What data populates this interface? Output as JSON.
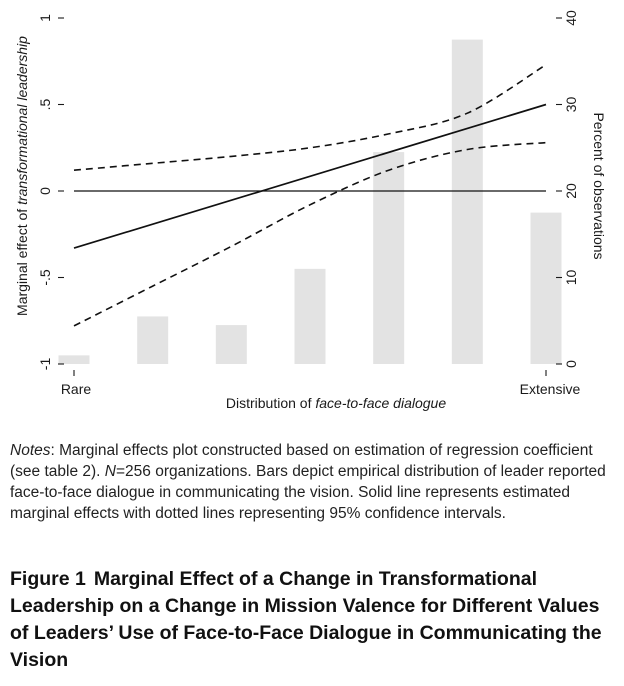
{
  "chart_data": {
    "type": "line",
    "xlabel_prefix": "Distribution of ",
    "xlabel_italic": "face-to-face dialogue",
    "ylabel_prefix": "Marginal effect of ",
    "ylabel_italic": "transformational leadership",
    "y2label": "Percent of observations",
    "x_tick_labels": [
      "Rare",
      "Extensive"
    ],
    "x_range": [
      1,
      7
    ],
    "ylim": [
      -1,
      1
    ],
    "y_ticks": [
      "-1",
      "-.5",
      "0",
      ".5",
      "1"
    ],
    "y2lim": [
      0,
      40
    ],
    "y2_ticks": [
      "0",
      "10",
      "20",
      "30",
      "40"
    ],
    "bars": {
      "x": [
        1,
        2,
        3,
        4,
        5,
        6,
        7
      ],
      "values": [
        1,
        5.5,
        4.5,
        11,
        24.5,
        37.5,
        17.5
      ]
    },
    "marginal_effect": {
      "x": [
        1,
        7
      ],
      "y": [
        -0.33,
        0.5
      ]
    },
    "ci_upper": {
      "x": [
        1,
        2,
        3,
        4,
        5,
        6,
        7
      ],
      "y": [
        0.12,
        0.16,
        0.2,
        0.25,
        0.33,
        0.45,
        0.73
      ]
    },
    "ci_lower": {
      "x": [
        1,
        2,
        3,
        4,
        5,
        6,
        7
      ],
      "y": [
        -0.78,
        -0.55,
        -0.32,
        -0.08,
        0.12,
        0.24,
        0.28
      ]
    },
    "reference_line_y": 0,
    "grid": false
  },
  "notes": {
    "label": "Notes",
    "part1": ": Marginal effects plot constructed based on estimation of regression coefficient (see table 2). ",
    "n_symbol": "N",
    "part2": "=256 organizations. Bars depict empirical distribution of leader reported face-to-face dialogue in communicating the vision. Solid line represents estimated marginal effects with dotted lines representing 95% confidence intervals."
  },
  "caption": {
    "figure_number": "Figure 1",
    "title": "Marginal Effect of a Change in Transformational Leadership on a Change in Mission Valence for Different Values of Leaders’ Use of Face-to-Face Dialogue in Communicating the Vision"
  },
  "colors": {
    "bar": "#e3e3e3",
    "line": "#111111",
    "text": "#1a1a1a"
  }
}
